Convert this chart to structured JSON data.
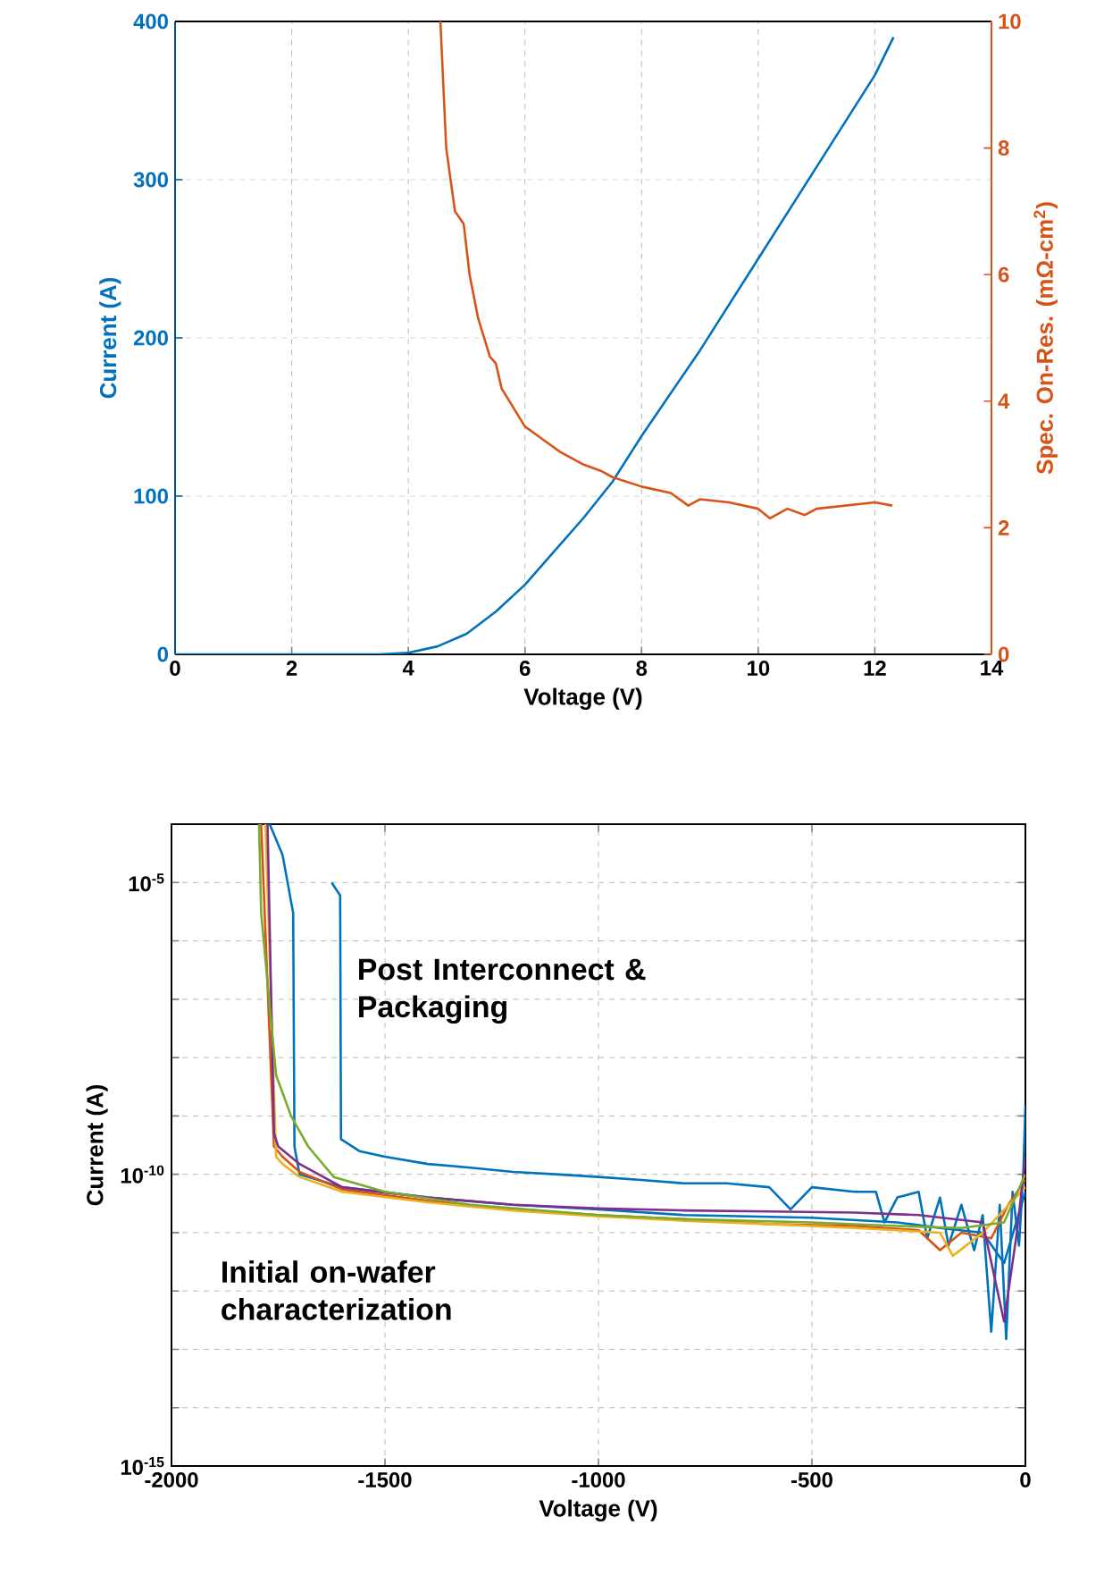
{
  "chart_data": [
    {
      "type": "line",
      "xlabel": "Voltage (V)",
      "ylabel": "Current (A)",
      "y2label": "Spec. On-Res. (mΩ-cm$^{2}$)",
      "xlim": [
        0,
        14
      ],
      "xticks": [
        0,
        2,
        4,
        6,
        8,
        10,
        12,
        14
      ],
      "ylim": [
        0,
        400
      ],
      "yticks": [
        0,
        100,
        200,
        300,
        400
      ],
      "y2lim": [
        0,
        10
      ],
      "y2ticks": [
        0,
        2,
        4,
        6,
        8,
        10
      ],
      "grid": true,
      "series": [
        {
          "color": "#0072bd",
          "x": [
            0,
            3,
            3.5,
            4,
            4.5,
            5,
            5.5,
            6,
            6.5,
            7,
            7.5,
            8,
            9,
            10,
            11,
            12,
            12.32
          ],
          "values": [
            0,
            0,
            0,
            1,
            5,
            13,
            27,
            44,
            65,
            86,
            109,
            138,
            192,
            250,
            308,
            366,
            390
          ]
        },
        {
          "color": "#d95319",
          "axis": "y2",
          "x": [
            4.55,
            4.65,
            4.8,
            4.95,
            5.05,
            5.2,
            5.4,
            5.5,
            5.6,
            5.8,
            6,
            6.3,
            6.6,
            7,
            7.3,
            7.5,
            8,
            8.5,
            8.8,
            9,
            9.5,
            10,
            10.2,
            10.5,
            10.8,
            11,
            11.5,
            12,
            12.3
          ],
          "values": [
            10,
            8,
            7.0,
            6.8,
            6,
            5.3,
            4.7,
            4.6,
            4.2,
            3.9,
            3.6,
            3.4,
            3.2,
            3.0,
            2.9,
            2.8,
            2.65,
            2.55,
            2.35,
            2.45,
            2.4,
            2.3,
            2.15,
            2.3,
            2.2,
            2.3,
            2.35,
            2.4,
            2.35
          ]
        }
      ]
    },
    {
      "type": "line",
      "log": "y",
      "xlabel": "Voltage (V)",
      "ylabel": "Current (A)",
      "xlim": [
        -2000,
        0
      ],
      "xticks": [
        -2000,
        -1500,
        -1000,
        -500,
        0
      ],
      "ylim": [
        1e-15,
        0.0001
      ],
      "yticks": [
        {
          "value": 1e-15,
          "label": "10$^{-15}$"
        },
        {
          "value": 1e-14,
          "label": null
        },
        {
          "value": 1e-13,
          "label": null
        },
        {
          "value": 1e-12,
          "label": null
        },
        {
          "value": 1e-11,
          "label": null
        },
        {
          "value": 1e-10,
          "label": "10$^{-10}$"
        },
        {
          "value": 1e-09,
          "label": null
        },
        {
          "value": 1e-08,
          "label": null
        },
        {
          "value": 1e-07,
          "label": null
        },
        {
          "value": 1e-06,
          "label": null
        },
        {
          "value": 1e-05,
          "label": "10$^{-5}$"
        }
      ],
      "grid": true,
      "annotations": [
        "Post Interconnect & Packaging",
        "Initial on-wafer characterization"
      ],
      "series": [
        {
          "color": "#0072bd",
          "x": [
            -1625,
            -1605,
            -1603,
            -1560,
            -1500,
            -1400,
            -1300,
            -1200,
            -1100,
            -1000,
            -900,
            -800,
            -700,
            -600,
            -550,
            -500,
            -400,
            -350,
            -330,
            -300,
            -250,
            -230,
            -200,
            -180,
            -150,
            -120,
            -100,
            -80,
            -60,
            -45,
            -30,
            -15,
            -5,
            0
          ],
          "values": [
            1e-05,
            6e-06,
            4e-10,
            2.5e-10,
            2e-10,
            1.5e-10,
            1.3e-10,
            1.1e-10,
            1e-10,
            9e-11,
            8e-11,
            7e-11,
            7e-11,
            6e-11,
            2.5e-11,
            6e-11,
            5e-11,
            5e-11,
            1.5e-11,
            4e-11,
            5e-11,
            8e-12,
            4e-11,
            6e-12,
            3e-11,
            5e-12,
            2e-11,
            2e-13,
            3e-11,
            1.5e-13,
            5e-11,
            6e-12,
            1e-10,
            1.5e-09
          ]
        },
        {
          "color": "#0072bd",
          "x": [
            -1770,
            -1740,
            -1715,
            -1712,
            -1700,
            -1600,
            -1400,
            -1200,
            -1000,
            -800,
            -500,
            -300,
            -200,
            -100,
            -50,
            0
          ],
          "values": [
            0.0001,
            3e-05,
            3e-06,
            3e-10,
            1e-10,
            6e-11,
            4e-11,
            3e-11,
            2.5e-11,
            2e-11,
            1.8e-11,
            1.5e-11,
            1.2e-11,
            1e-11,
            3e-12,
            5e-11
          ]
        },
        {
          "color": "#d95319",
          "x": [
            -1790,
            -1760,
            -1740,
            -1700,
            -1600,
            -1400,
            -1200,
            -1000,
            -800,
            -600,
            -400,
            -250,
            -200,
            -150,
            -80,
            -40,
            0
          ],
          "values": [
            0.0001,
            3e-10,
            2e-10,
            1.1e-10,
            5.5e-11,
            3.5e-11,
            2.5e-11,
            2e-11,
            1.7e-11,
            1.4e-11,
            1.3e-11,
            1.1e-11,
            5e-12,
            1e-11,
            8e-12,
            3e-11,
            8e-11
          ]
        },
        {
          "color": "#edb120",
          "x": [
            -1780,
            -1755,
            -1740,
            -1700,
            -1600,
            -1400,
            -1200,
            -1000,
            -800,
            -600,
            -400,
            -200,
            -170,
            -100,
            0
          ],
          "values": [
            0.0001,
            2e-10,
            1.5e-10,
            9e-11,
            5e-11,
            3.3e-11,
            2.4e-11,
            1.9e-11,
            1.6e-11,
            1.4e-11,
            1.2e-11,
            1e-11,
            4e-12,
            1e-11,
            6e-11
          ]
        },
        {
          "color": "#7e2f8e",
          "x": [
            -1775,
            -1760,
            -1750,
            -1700,
            -1600,
            -1400,
            -1200,
            -1000,
            -800,
            -600,
            -400,
            -250,
            -100,
            -50,
            -20,
            0
          ],
          "values": [
            0.0001,
            5e-10,
            3e-10,
            1.5e-10,
            6e-11,
            4e-11,
            3e-11,
            2.6e-11,
            2.4e-11,
            2.3e-11,
            2.2e-11,
            2e-11,
            1.5e-11,
            3e-13,
            1e-11,
            2e-10
          ]
        },
        {
          "color": "#77ac30",
          "x": [
            -1795,
            -1790,
            -1755,
            -1720,
            -1680,
            -1620,
            -1500,
            -1300,
            -1000,
            -800,
            -500,
            -300,
            -150,
            -50,
            0
          ],
          "values": [
            0.0001,
            3e-06,
            5e-09,
            1e-09,
            3e-10,
            9e-11,
            5e-11,
            3e-11,
            2e-11,
            1.7e-11,
            1.5e-11,
            1.3e-11,
            1.2e-11,
            1.5e-11,
            1e-10
          ]
        }
      ]
    }
  ]
}
